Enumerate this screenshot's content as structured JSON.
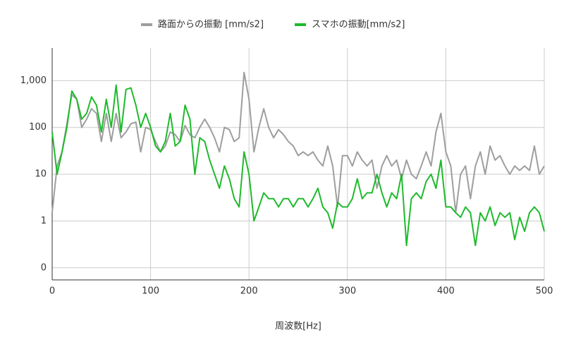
{
  "chart_data": {
    "type": "line",
    "x_label": "周波数[Hz]",
    "x": [
      0,
      5,
      10,
      15,
      20,
      25,
      30,
      35,
      40,
      45,
      50,
      55,
      60,
      65,
      70,
      75,
      80,
      85,
      90,
      95,
      100,
      105,
      110,
      115,
      120,
      125,
      130,
      135,
      140,
      145,
      150,
      155,
      160,
      165,
      170,
      175,
      180,
      185,
      190,
      195,
      200,
      205,
      210,
      215,
      220,
      225,
      230,
      235,
      240,
      245,
      250,
      255,
      260,
      265,
      270,
      275,
      280,
      285,
      290,
      295,
      300,
      305,
      310,
      315,
      320,
      325,
      330,
      335,
      340,
      345,
      350,
      355,
      360,
      365,
      370,
      375,
      380,
      385,
      390,
      395,
      400,
      405,
      410,
      415,
      420,
      425,
      430,
      435,
      440,
      445,
      450,
      455,
      460,
      465,
      470,
      475,
      480,
      485,
      490,
      495,
      500
    ],
    "series": [
      {
        "name": "路面からの振動 [mm/s2]",
        "color": "#9e9e9e",
        "values": [
          1.5,
          15,
          30,
          120,
          500,
          400,
          100,
          150,
          250,
          200,
          50,
          200,
          50,
          200,
          60,
          80,
          120,
          130,
          30,
          100,
          90,
          50,
          30,
          40,
          80,
          70,
          50,
          110,
          70,
          60,
          100,
          150,
          100,
          60,
          30,
          100,
          90,
          50,
          60,
          1500,
          400,
          30,
          100,
          250,
          100,
          60,
          90,
          70,
          50,
          40,
          25,
          30,
          25,
          30,
          20,
          15,
          40,
          15,
          2,
          25,
          25,
          15,
          30,
          20,
          15,
          20,
          5,
          15,
          25,
          15,
          20,
          8,
          20,
          10,
          8,
          15,
          30,
          15,
          80,
          200,
          30,
          15,
          1.5,
          10,
          15,
          3,
          15,
          30,
          10,
          40,
          20,
          25,
          15,
          10,
          15,
          12,
          15,
          12,
          40,
          10,
          15
        ]
      },
      {
        "name": "スマホの振動[mm/s2]",
        "color": "#1fba2c",
        "values": [
          80,
          10,
          30,
          100,
          600,
          400,
          150,
          200,
          450,
          300,
          80,
          400,
          100,
          800,
          80,
          650,
          700,
          300,
          100,
          200,
          100,
          40,
          30,
          50,
          200,
          40,
          50,
          300,
          150,
          10,
          60,
          50,
          20,
          10,
          5,
          15,
          8,
          3,
          2,
          30,
          10,
          1,
          2,
          4,
          3,
          3,
          2,
          3,
          3,
          2,
          3,
          3,
          2,
          3,
          5,
          2,
          1.5,
          0.7,
          2.5,
          2,
          2,
          3,
          8,
          3,
          4,
          4,
          10,
          4,
          2,
          4,
          3,
          10,
          0.3,
          3,
          4,
          3,
          7,
          10,
          5,
          20,
          2,
          2,
          1.5,
          1.2,
          2,
          1.5,
          0.3,
          1.5,
          1,
          2,
          0.8,
          1.5,
          1.2,
          1.5,
          0.4,
          1.2,
          0.6,
          1.5,
          2,
          1.5,
          0.6
        ]
      }
    ],
    "xlim": [
      0,
      500
    ],
    "xticks": [
      0,
      100,
      200,
      300,
      400,
      500
    ],
    "y_scale": "log",
    "ylim": [
      0.055,
      5000
    ],
    "yticks": [
      {
        "value": 0.1,
        "label": "0"
      },
      1,
      10,
      100,
      {
        "value": 1000,
        "label": "1,000"
      }
    ],
    "grid": true,
    "legend_position": "top"
  }
}
